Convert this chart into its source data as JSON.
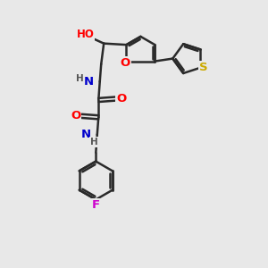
{
  "background_color": "#e8e8e8",
  "bond_color": "#2a2a2a",
  "bond_width": 1.8,
  "atom_colors": {
    "O": "#ff0000",
    "N": "#0000cc",
    "S": "#ccaa00",
    "F": "#cc00cc",
    "H": "#555555",
    "C": "#2a2a2a"
  },
  "font_size": 8.5,
  "fig_size": [
    3.0,
    3.0
  ],
  "dpi": 100
}
